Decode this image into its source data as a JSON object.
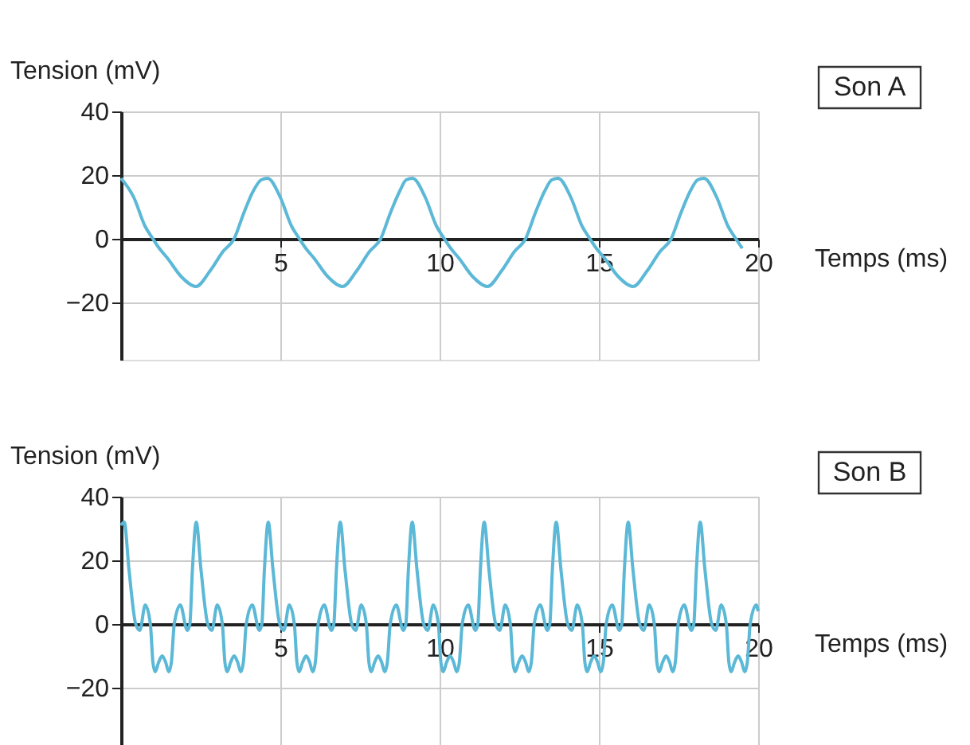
{
  "chart_data": [
    {
      "type": "line",
      "ylabel": "Tension (mV)",
      "xlabel": "Temps (ms)",
      "annotations": [
        "Son A"
      ],
      "xlim": [
        0,
        20
      ],
      "ylim": [
        -38,
        40
      ],
      "xticks": [
        5,
        10,
        15,
        20
      ],
      "yticks": [
        -20,
        0,
        20,
        40
      ],
      "grid": true,
      "series": [
        {
          "color": "#5bb8d6",
          "x": [
            0,
            0.4,
            0.75,
            1.0,
            1.2,
            1.45,
            1.9,
            2.35,
            2.8,
            3.2,
            3.55,
            3.85,
            4.15,
            4.4,
            4.6,
            5.0,
            5.35,
            5.6,
            5.8,
            6.05,
            6.5,
            6.95,
            7.4,
            7.8,
            8.15,
            8.45,
            8.75,
            8.95,
            9.15,
            9.55,
            9.9,
            10.15,
            10.35,
            10.6,
            11.05,
            11.5,
            11.95,
            12.35,
            12.7,
            13.0,
            13.3,
            13.52,
            13.72,
            14.12,
            14.47,
            14.72,
            14.92,
            15.17,
            15.62,
            16.07,
            16.52,
            16.92,
            17.27,
            17.57,
            17.87,
            18.1,
            18.3,
            18.7,
            19.05,
            19.3,
            19.5
          ],
          "values": [
            19,
            13,
            4,
            0,
            -3,
            -6,
            -12,
            -15,
            -10,
            -4,
            0,
            8,
            15,
            18.5,
            19,
            13,
            4,
            0,
            -3,
            -6,
            -12,
            -15,
            -10,
            -4,
            0,
            8,
            15,
            18.5,
            19,
            13,
            4,
            0,
            -3,
            -6,
            -12,
            -15,
            -10,
            -4,
            0,
            8,
            15,
            18.5,
            19,
            13,
            4,
            0,
            -3,
            -6,
            -12,
            -15,
            -10,
            -4,
            0,
            8,
            15,
            18.5,
            19,
            13,
            4,
            0,
            -3
          ]
        }
      ]
    },
    {
      "type": "line",
      "ylabel": "Tension (mV)",
      "xlabel": "Temps (ms)",
      "annotations": [
        "Son B"
      ],
      "xlim": [
        0,
        20
      ],
      "ylim": [
        -38,
        40
      ],
      "xticks": [
        5,
        10,
        15,
        20
      ],
      "yticks": [
        -20,
        0,
        20,
        40
      ],
      "grid": true,
      "series": [
        {
          "color": "#5bb8d6",
          "x": [
            0,
            0.1,
            0.25,
            0.46,
            0.59,
            0.76,
            0.92,
            1.0,
            1.07,
            1.18,
            1.29,
            1.4,
            1.5,
            1.58,
            1.67,
            1.86,
            2.08,
            2.16,
            2.24,
            2.36,
            2.51,
            2.72,
            2.85,
            3.02,
            3.18,
            3.26,
            3.33,
            3.44,
            3.55,
            3.66,
            3.76,
            3.84,
            3.93,
            4.12,
            4.34,
            4.42,
            4.5,
            4.62,
            4.77,
            4.98,
            5.11,
            5.28,
            5.44,
            5.52,
            5.59,
            5.7,
            5.81,
            5.92,
            6.02,
            6.1,
            6.19,
            6.38,
            6.6,
            6.68,
            6.76,
            6.88,
            7.03,
            7.24,
            7.37,
            7.54,
            7.7,
            7.78,
            7.85,
            7.96,
            8.07,
            8.18,
            8.28,
            8.36,
            8.45,
            8.64,
            8.86,
            8.94,
            9.02,
            9.14,
            9.29,
            9.5,
            9.63,
            9.8,
            9.96,
            10.04,
            10.11,
            10.22,
            10.33,
            10.44,
            10.54,
            10.62,
            10.71,
            10.9,
            11.12,
            11.2,
            11.28,
            11.4,
            11.55,
            11.76,
            11.89,
            12.06,
            12.22,
            12.3,
            12.37,
            12.48,
            12.59,
            12.7,
            12.8,
            12.88,
            12.97,
            13.16,
            13.38,
            13.46,
            13.54,
            13.66,
            13.81,
            14.02,
            14.15,
            14.32,
            14.48,
            14.56,
            14.63,
            14.74,
            14.85,
            14.96,
            15.06,
            15.14,
            15.23,
            15.42,
            15.64,
            15.72,
            15.8,
            15.92,
            16.07,
            16.28,
            16.41,
            16.58,
            16.74,
            16.82,
            16.89,
            17.0,
            17.11,
            17.22,
            17.32,
            17.4,
            17.49,
            17.68,
            17.9,
            17.98,
            18.06,
            18.18,
            18.33,
            18.54,
            18.67,
            18.84,
            19.0,
            19.08,
            19.15,
            19.26,
            19.37,
            19.48,
            19.58,
            19.66,
            19.75,
            19.94,
            20.0
          ],
          "values": [
            31,
            32,
            17,
            0,
            -2,
            6,
            0,
            -12,
            -15,
            -12,
            -10,
            -12,
            -15,
            -12,
            0,
            6,
            -2,
            0,
            17,
            32,
            17,
            0,
            -2,
            6,
            0,
            -12,
            -15,
            -12,
            -10,
            -12,
            -15,
            -12,
            0,
            6,
            -2,
            0,
            17,
            32,
            17,
            0,
            -2,
            6,
            0,
            -12,
            -15,
            -12,
            -10,
            -12,
            -15,
            -12,
            0,
            6,
            -2,
            0,
            17,
            32,
            17,
            0,
            -2,
            6,
            0,
            -12,
            -15,
            -12,
            -10,
            -12,
            -15,
            -12,
            0,
            6,
            -2,
            0,
            17,
            32,
            17,
            0,
            -2,
            6,
            0,
            -12,
            -15,
            -12,
            -10,
            -12,
            -15,
            -12,
            0,
            6,
            -2,
            0,
            17,
            32,
            17,
            0,
            -2,
            6,
            0,
            -12,
            -15,
            -12,
            -10,
            -12,
            -15,
            -12,
            0,
            6,
            -2,
            0,
            17,
            32,
            17,
            0,
            -2,
            6,
            0,
            -12,
            -15,
            -12,
            -10,
            -12,
            -15,
            -12,
            0,
            6,
            -2,
            0,
            17,
            32,
            17,
            0,
            -2,
            6,
            0,
            -12,
            -15,
            -12,
            -10,
            -12,
            -15,
            -12,
            0,
            6,
            -2,
            0,
            17,
            32,
            17,
            0,
            -2,
            6,
            0,
            -12,
            -15,
            -12,
            -10,
            -12,
            -15,
            -12,
            0,
            6,
            4
          ]
        }
      ]
    }
  ]
}
